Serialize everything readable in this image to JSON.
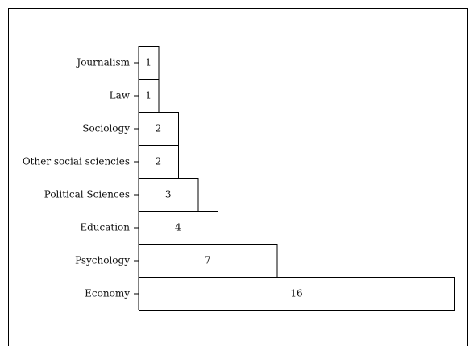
{
  "chart_data": {
    "type": "bar",
    "orientation": "horizontal",
    "categories": [
      "Journalism",
      "Law",
      "Sociology",
      "Other sociai sciencies",
      "Political Sciences",
      "Education",
      "Psychology",
      "Economy"
    ],
    "values": [
      1,
      1,
      2,
      2,
      3,
      4,
      7,
      16
    ],
    "xlim": [
      0,
      16
    ],
    "grid": false,
    "data_labels": true
  }
}
